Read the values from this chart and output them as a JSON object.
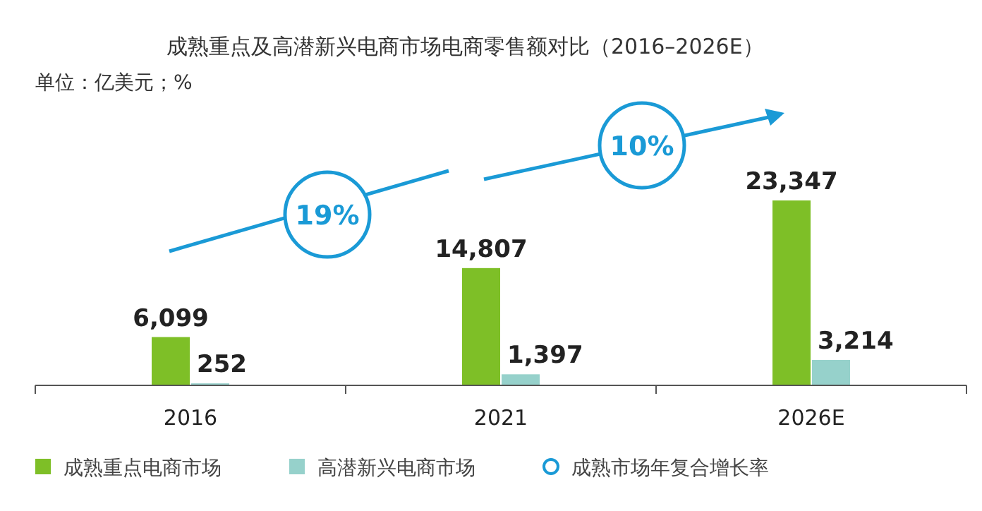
{
  "chart_data": {
    "type": "bar",
    "title": "成熟重点及高潜新兴电商市场电商零售额对比（2016–2026E）",
    "subtitle": "单位：亿美元；%",
    "categories": [
      "2016",
      "2021",
      "2026E"
    ],
    "series": [
      {
        "name": "成熟重点电商市场",
        "color": "#7ebf27",
        "values": [
          6099,
          14807,
          23347
        ],
        "value_labels": [
          "6,099",
          "14,807",
          "23,347"
        ]
      },
      {
        "name": "高潜新兴电商市场",
        "color": "#96d1cb",
        "values": [
          252,
          1397,
          3214
        ],
        "value_labels": [
          "252",
          "1,397",
          "3,214"
        ]
      }
    ],
    "annotations": [
      "19%",
      "10%",
      "成熟市场年复合增长率"
    ],
    "legend": "bottom"
  }
}
